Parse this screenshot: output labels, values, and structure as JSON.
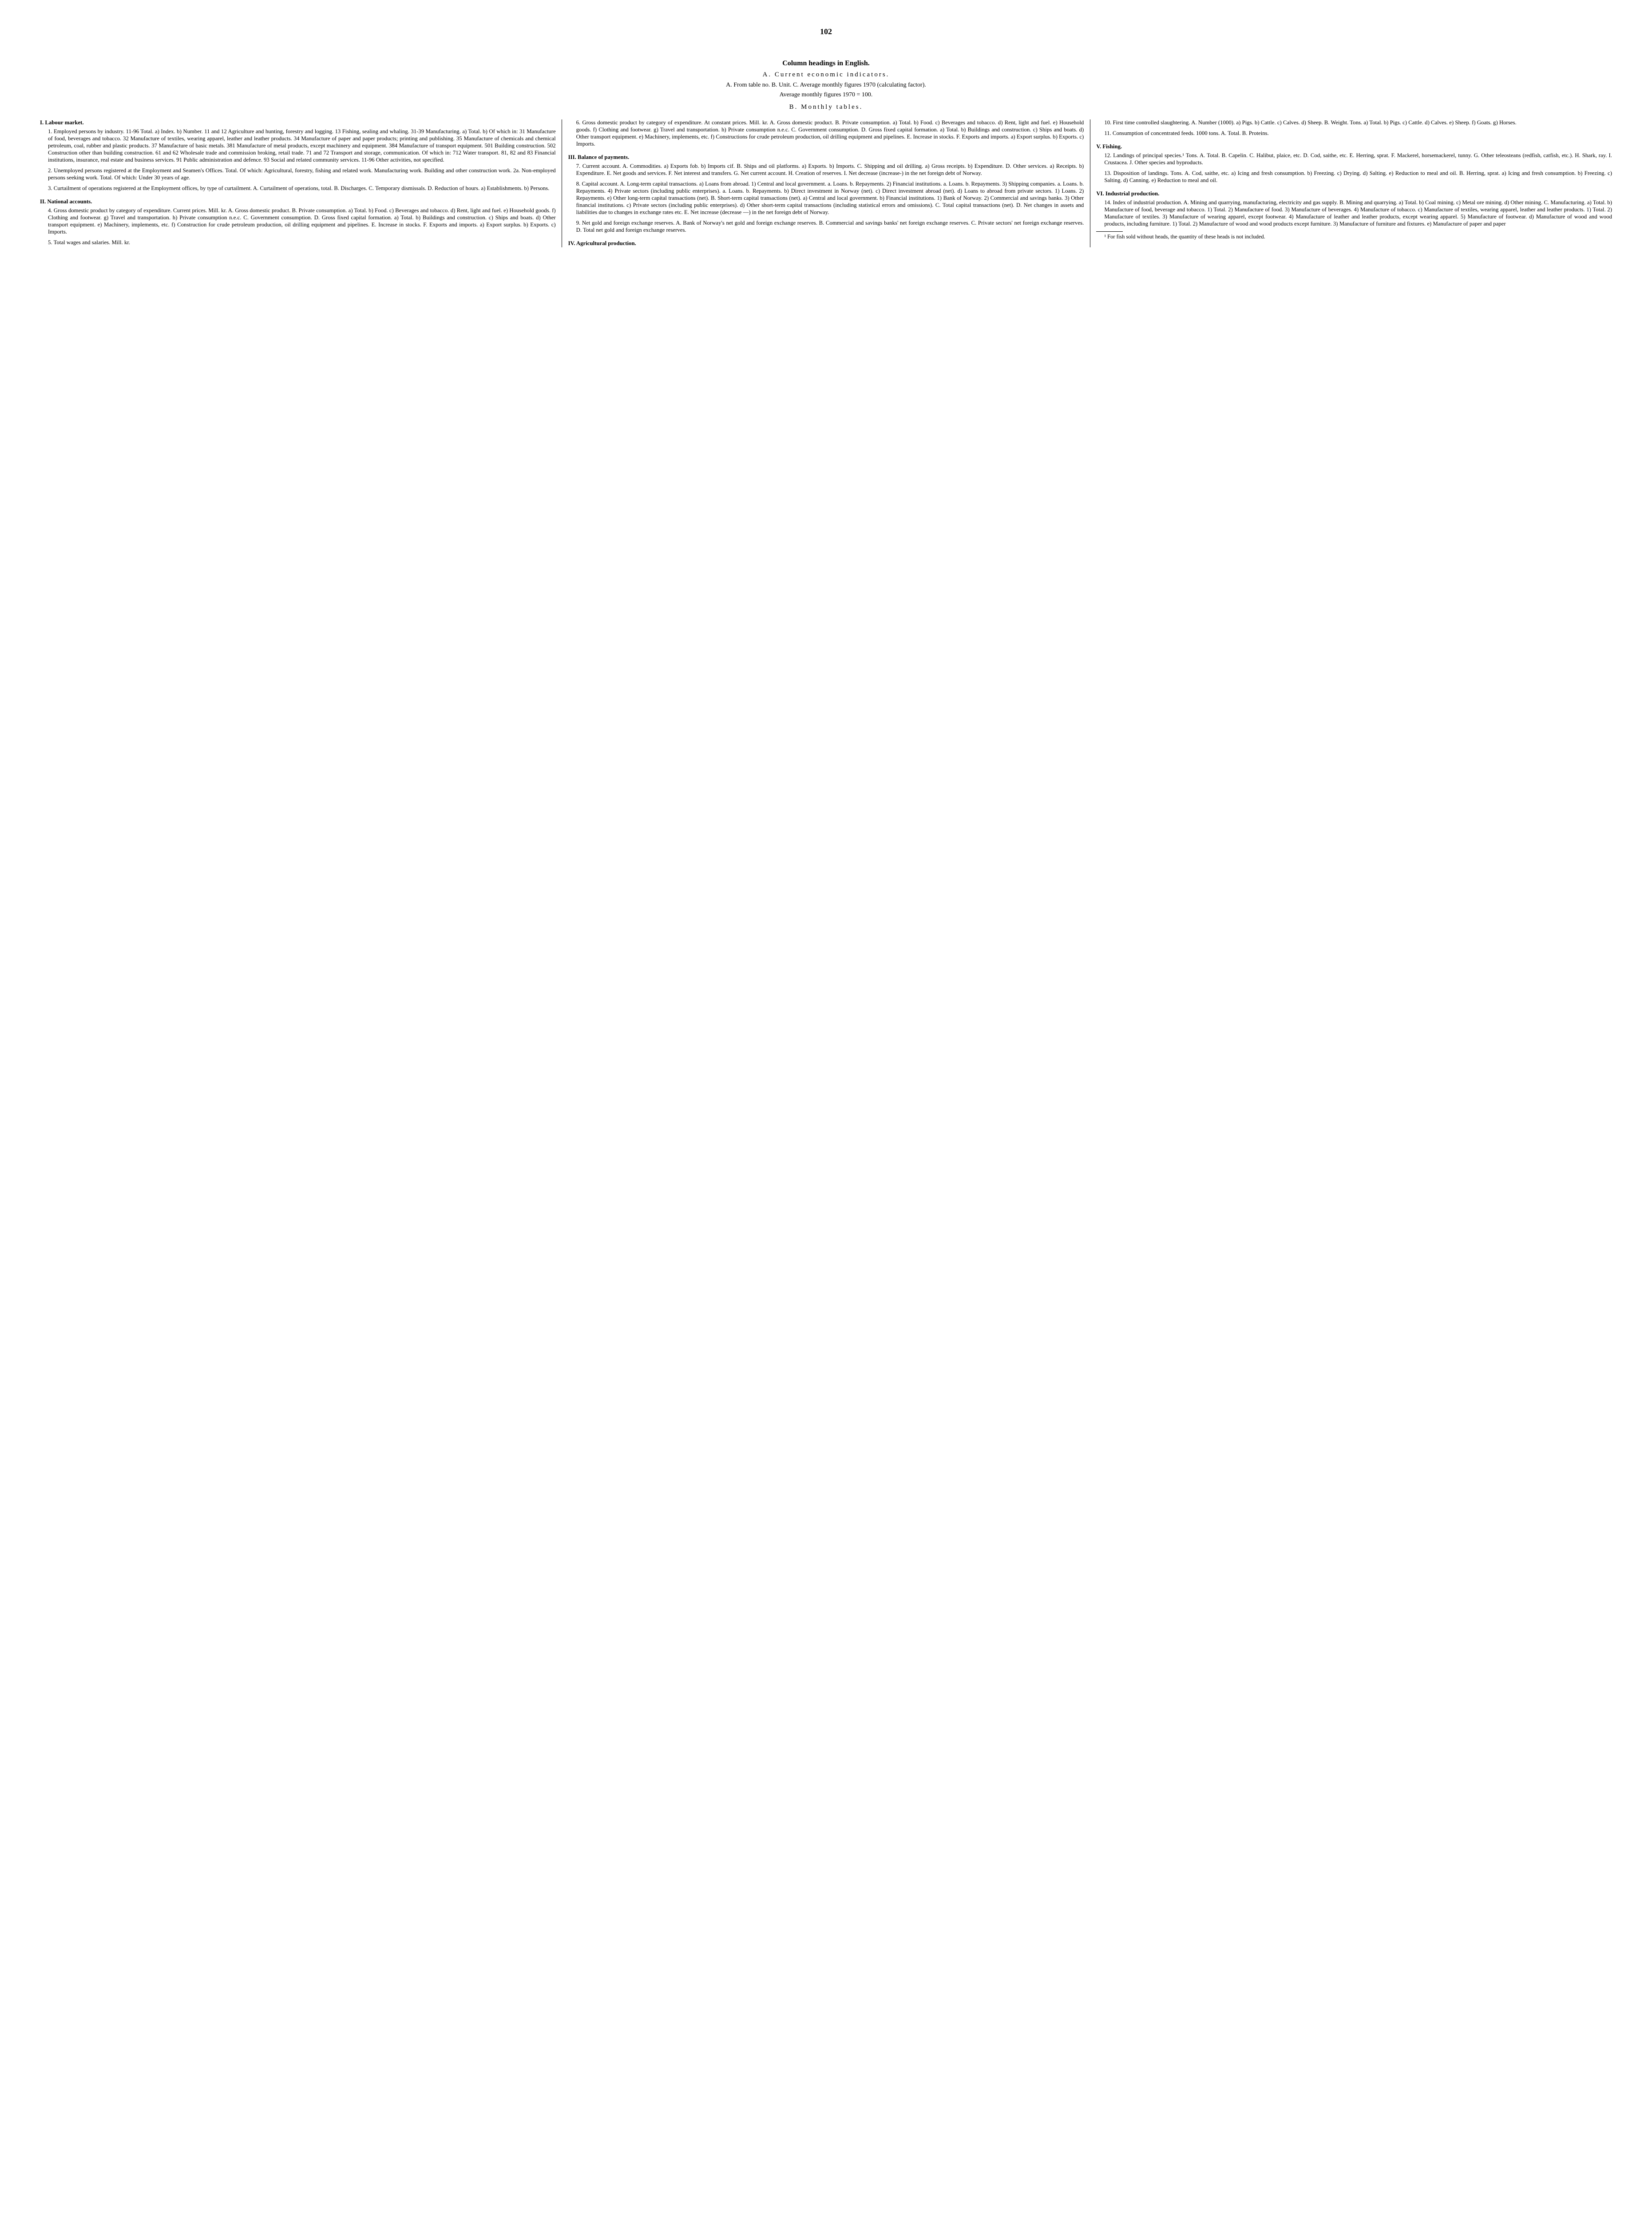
{
  "page_number": "102",
  "main_title": "Column headings in English.",
  "section_a_label": "A. Current economic indicators.",
  "intro_line1": "A. From table no.   B. Unit. C. Average monthly figures 1970 (calculating factor).",
  "intro_line2": "Average monthly figures 1970 = 100.",
  "section_b_label": "B. Monthly tables.",
  "sections": {
    "I": {
      "head": "I. Labour market.",
      "e1": "1. Employed persons by industry. 11-96 Total. a) Index. b) Number. 11 and 12 Agriculture and hunting, forestry and logging. 13 Fishing, sealing and whaling. 31-39 Manufacturing. a) Total. b) Of which in: 31 Manufacture of food, beverages and tobacco. 32 Manufacture of textiles, wearing apparel, leather and leather products. 34 Manufacture of paper and paper products; printing and publishing. 35 Manufacture of chemicals and chemical petroleum, coal, rubber and plastic products. 37 Manufacture of basic metals. 381 Manufacture of metal products, except machinery and equipment. 384 Manufacture of transport equipment. 501 Building construction. 502 Construction other than building construction. 61 and 62 Wholesale trade and commission broking, retail trade. 71 and 72 Transport and storage, communication. Of which in: 712 Water transport. 81, 82 and 83 Financial institutions, insurance, real estate and business services. 91 Public administration and defence. 93 Social and related community services. 11-96 Other activities, not specified.",
      "e2": "2. Unemployed persons registered at the Employment and Seamen's Offices. Total. Of which: Agricultural, forestry, fishing and related work. Manufacturing work. Building and other construction work. 2a. Non-employed persons seeking work. Total. Of which: Under 30 years of age.",
      "e3": "3. Curtailment of operations registered at the Employment offices, by type of curtailment. A. Curtailment of operations, total. B. Discharges. C. Temporary dismissals. D. Reduction of hours. a) Establishments. b) Persons."
    },
    "II": {
      "head": "II. National accounts.",
      "e4": "4. Gross domestic product by category of expenditure. Current prices. Mill. kr. A. Gross domestic product. B. Private consumption. a) Total. b) Food. c) Beverages and tobacco. d) Rent, light and fuel. e) Household goods. f) Clothing and footwear. g) Travel and transportation. h) Private consumption n.e.c. C. Government consumption. D. Gross fixed capital formation. a) Total. b) Buildings and construction. c) Ships and boats. d) Other transport equipment. e) Machinery, implements, etc. f) Construction for crude petroleum production, oil drilling equipment and pipelines. E. Increase in stocks. F. Exports and imports. a) Export surplus. b) Exports. c) Imports.",
      "e5": "5. Total wages and salaries. Mill. kr.",
      "e6": "6. Gross domestic product by category of expenditure. At constant prices. Mill. kr. A. Gross domestic product. B. Private consumption. a) Total. b) Food. c) Beverages and tobacco. d) Rent, light and fuel. e) Household goods. f) Clothing and footwear. g) Travel and transportation. h) Private consumption n.e.c. C. Government consumption. D. Gross fixed capital formation. a) Total. b) Buildings and construction. c) Ships and boats. d) Other transport equipment. e) Machinery, implements, etc. f) Constructions for crude petroleum production, oil drilling equipment and pipelines. E. Increase in stocks. F. Exports and imports. a) Export surplus. b) Exports. c) Imports."
    },
    "III": {
      "head": "III. Balance of payments.",
      "e7": "7. Current account. A. Commodities. a) Exports fob. b) Imports cif. B. Ships and oil platforms. a) Exports. b) Imports. C. Shipping and oil drilling. a) Gross receipts. b) Expenditure. D. Other services. a) Receipts. b) Expenditure. E. Net goods and services. F. Net interest and transfers. G. Net current account. H. Creation of reserves. I. Net decrease (increase-) in the net foreign debt of Norway.",
      "e8": "8. Capital account. A. Long-term capital transactions. a) Loans from abroad. 1) Central and local government. a. Loans. b. Repayments. 2) Financial institutions. a. Loans. b. Repayments. 3) Shipping companies. a. Loans. b. Repayments. 4) Private sectors (including public enterprises). a. Loans. b. Repayments. b) Direct investment in Norway (net). c) Direct investment abroad (net). d) Loans to abroad from private sectors. 1) Loans. 2) Repayments. e) Other long-term capital transactions (net). B. Short-term capital transactions (net). a) Central and local government. b) Financial institutions. 1) Bank of Norway. 2) Commercial and savings banks. 3) Other financial institutions. c) Private sectors (including public enterprises). d) Other short-term capital transactions (including statistical errors and omissions). C. Total capital transactions (net). D. Net changes in assets and liabilities due to changes in exchange rates etc. E. Net increase (decrease —) in the net foreign debt of Norway.",
      "e9": "9. Net gold and foreign exchange reserves. A. Bank of Norway's net gold and foreign exchange reserves. B. Commercial and savings banks' net foreign exchange reserves. C. Private sectors' net foreign exchange reserves. D. Total net gold and foreign exchange reserves."
    },
    "IV": {
      "head": "IV. Agricultural production.",
      "e10": "10. First time controlled slaughtering. A. Number (1000). a) Pigs. b) Cattle. c) Calves. d) Sheep. B. Weight. Tons. a) Total. b) Pigs. c) Cattle. d) Calves. e) Sheep. f) Goats. g) Horses.",
      "e11": "11. Consumption of concentrated feeds. 1000 tons. A. Total. B. Proteins."
    },
    "V": {
      "head": "V. Fishing.",
      "e12": "12. Landings of principal species.¹ Tons. A. Total. B. Capelin. C. Halibut, plaice, etc. D. Cod, saithe, etc. E. Herring, sprat. F. Mackerel, horsemackerel, tunny. G. Other teleosteans (redfish, catfish, etc.). H. Shark, ray. I. Crustacea. J. Other species and byproducts.",
      "e13": "13. Disposition of landings. Tons. A. Cod, saithe, etc. a) Icing and fresh consumption. b) Freezing. c) Drying. d) Salting. e) Reduction to meal and oil. B. Herring, sprat. a) Icing and fresh consumption. b) Freezing. c) Salting. d) Canning. e) Reduction to meal and oil."
    },
    "VI": {
      "head": "VI. Industrial production.",
      "e14": "14. Index of industrial production. A. Mining and quarrying, manufacturing, electricity and gas supply. B. Mining and quarrying. a) Total. b) Coal mining. c) Metal ore mining. d) Other mining. C. Manufacturing. a) Total. b) Manufacture of food, beverage and tobacco. 1) Total. 2) Manufacture of food. 3) Manufacture of beverages. 4) Manufacture of tobacco. c) Manufacture of textiles, wearing apparel, leather and leather products. 1) Total. 2) Manufacture of textiles. 3) Manufacture of wearing apparel, except footwear. 4) Manufacture of leather and leather products, except wearing apparel. 5) Manufacture of footwear. d) Manufacture of wood and wood products, including furniture. 1) Total. 2) Manufacture of wood and wood products except furniture. 3) Manufacture of furniture and fixtures. e) Manufacture of paper and paper"
    }
  },
  "footnote": "¹ For fish sold without heads, the quantity of these heads is not included."
}
